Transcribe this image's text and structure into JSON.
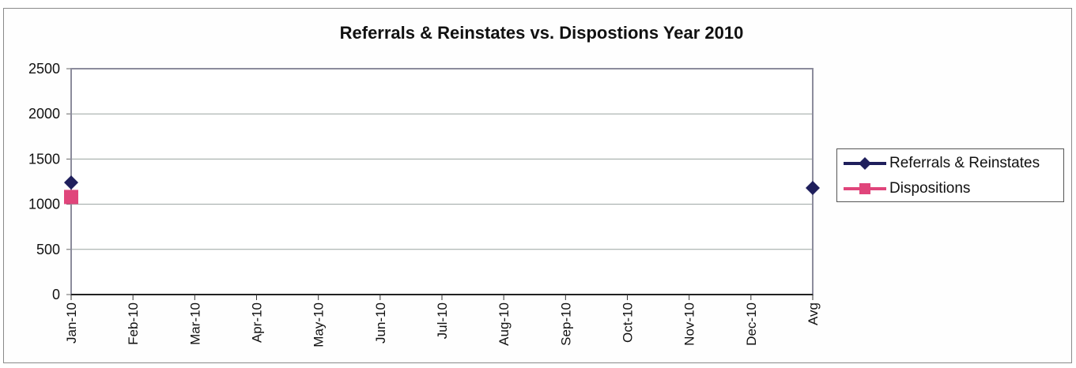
{
  "chart_data": {
    "type": "line",
    "title": "Referrals & Reinstates vs. Dispostions Year 2010",
    "categories": [
      "Jan-10",
      "Feb-10",
      "Mar-10",
      "Apr-10",
      "May-10",
      "Jun-10",
      "Jul-10",
      "Aug-10",
      "Sep-10",
      "Oct-10",
      "Nov-10",
      "Dec-10",
      "Avg"
    ],
    "ylim": [
      0,
      2500
    ],
    "yticks": [
      "0",
      "500",
      "1000",
      "1500",
      "2000",
      "2500"
    ],
    "grid": true,
    "legend_position": "right",
    "series": [
      {
        "name": "Referrals & Reinstates",
        "color": "#1f1f5c",
        "marker": "diamond",
        "values": [
          1240,
          null,
          null,
          null,
          null,
          null,
          null,
          null,
          null,
          null,
          null,
          null,
          1180
        ]
      },
      {
        "name": "Dispositions",
        "color": "#e0457b",
        "marker": "square",
        "values": [
          1080,
          null,
          null,
          null,
          null,
          null,
          null,
          null,
          null,
          null,
          null,
          null,
          null
        ]
      }
    ]
  }
}
